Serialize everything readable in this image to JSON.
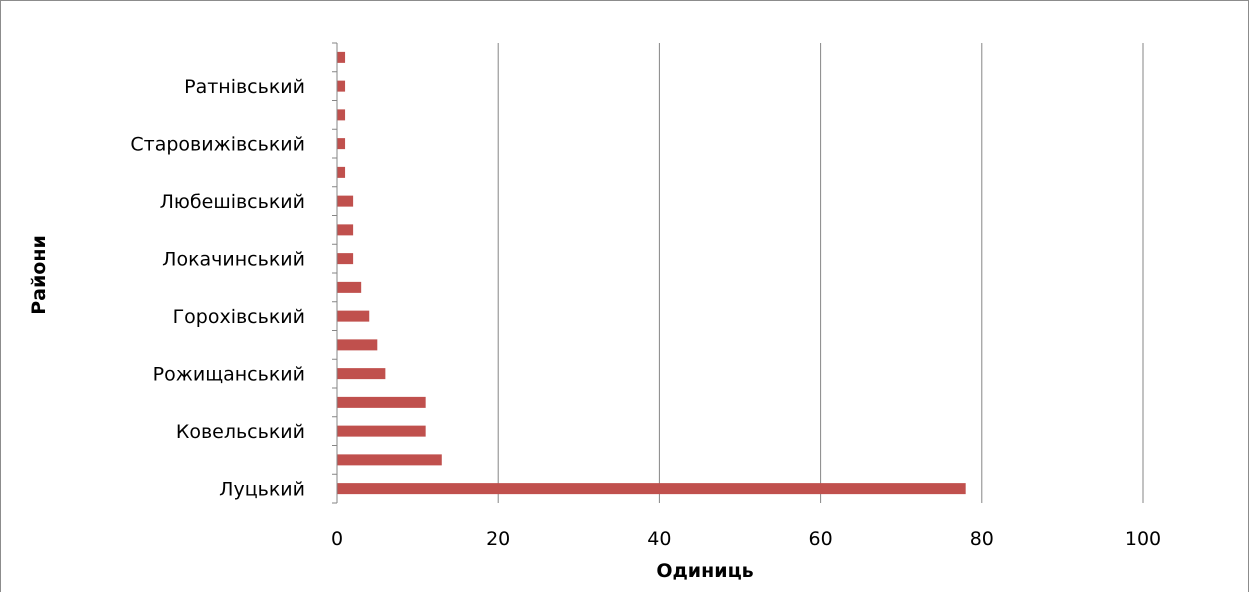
{
  "chart_data": {
    "type": "bar",
    "orientation": "horizontal",
    "bar_color": "#c0504d",
    "grid": true,
    "xlabel": "Одиниць",
    "ylabel": "Райони",
    "xlim": [
      0,
      100
    ],
    "x_ticks": [
      0,
      20,
      40,
      60,
      80,
      100
    ],
    "categories": [
      "Луцький",
      "",
      "Ковельський",
      "",
      "Рожищанський",
      "",
      "Горохівський",
      "",
      "Локачинський",
      "",
      "Любешівський",
      "",
      "Старовижівський",
      "",
      "Ратнівський",
      ""
    ],
    "values": [
      78,
      13,
      11,
      11,
      6,
      5,
      4,
      3,
      2,
      2,
      2,
      1,
      1,
      1,
      1,
      1
    ]
  }
}
